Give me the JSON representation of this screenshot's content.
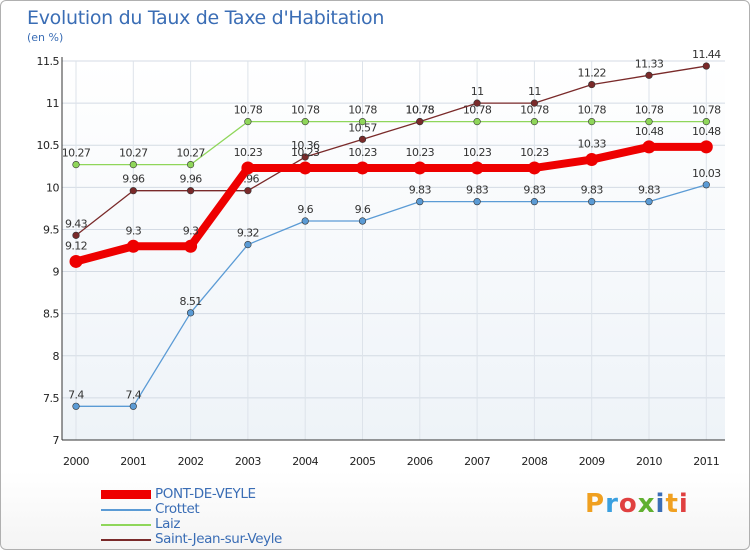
{
  "title": "Evolution du Taux de Taxe d'Habitation",
  "subtitle": "(en %)",
  "logo": {
    "text": "Proxiti",
    "colors": [
      "#f0a020",
      "#3aa0e0",
      "#e04040",
      "#60b030",
      "#3a6db5",
      "#f0a020",
      "#e04040"
    ]
  },
  "chart_data": {
    "type": "line",
    "title": "Evolution du Taux de Taxe d'Habitation",
    "ylabel": "(en %)",
    "xlabel": "",
    "ylim": [
      7,
      11.5
    ],
    "yticks": [
      "7",
      "7.5",
      "8",
      "8.5",
      "9",
      "9.5",
      "10",
      "10.5",
      "11",
      "11.5"
    ],
    "grid": true,
    "legend": "bottom-left",
    "categories": [
      "2000",
      "2001",
      "2002",
      "2003",
      "2004",
      "2005",
      "2006",
      "2007",
      "2008",
      "2009",
      "2010",
      "2011"
    ],
    "series": [
      {
        "name": "Laiz",
        "color": "#8fd65a",
        "values": [
          10.27,
          10.27,
          10.27,
          10.78,
          10.78,
          10.78,
          10.78,
          10.78,
          10.78,
          10.78,
          10.78,
          10.78
        ],
        "labels": [
          "10.27",
          "10.27",
          "10.27",
          "10.78",
          "10.78",
          "10.78",
          "10.78",
          "10.78",
          "10.78",
          "10.78",
          "10.78",
          "10.78"
        ]
      },
      {
        "name": "Saint-Jean-sur-Veyle",
        "color": "#7a2a2a",
        "values": [
          9.43,
          9.96,
          9.96,
          9.96,
          10.36,
          10.57,
          10.78,
          11,
          11,
          11.22,
          11.33,
          11.44
        ],
        "labels": [
          "9.43",
          "9.96",
          "9.96",
          "9.96",
          "10.36",
          "10.57",
          "10.78",
          "11",
          "11",
          "11.22",
          "11.33",
          "11.44"
        ]
      },
      {
        "name": "Crottet",
        "color": "#5b9bd5",
        "values": [
          7.4,
          7.4,
          8.51,
          9.32,
          9.6,
          9.6,
          9.83,
          9.83,
          9.83,
          9.83,
          9.83,
          10.03
        ],
        "labels": [
          "7.4",
          "7.4",
          "8.51",
          "9.32",
          "9.6",
          "9.6",
          "9.83",
          "9.83",
          "9.83",
          "9.83",
          "9.83",
          "10.03"
        ]
      },
      {
        "name": "PONT-DE-VEYLE",
        "color": "#ee0000",
        "values": [
          9.12,
          9.3,
          9.3,
          10.23,
          10.23,
          10.23,
          10.23,
          10.23,
          10.23,
          10.33,
          10.48,
          10.48
        ],
        "labels": [
          "9.12",
          "9.3",
          "9.3",
          "10.23",
          "10.23",
          "10.23",
          "10.23",
          "10.23",
          "10.23",
          "10.33",
          "10.48",
          "10.48"
        ]
      }
    ],
    "legend_order": [
      "PONT-DE-VEYLE",
      "Crottet",
      "Laiz",
      "Saint-Jean-sur-Veyle"
    ]
  }
}
